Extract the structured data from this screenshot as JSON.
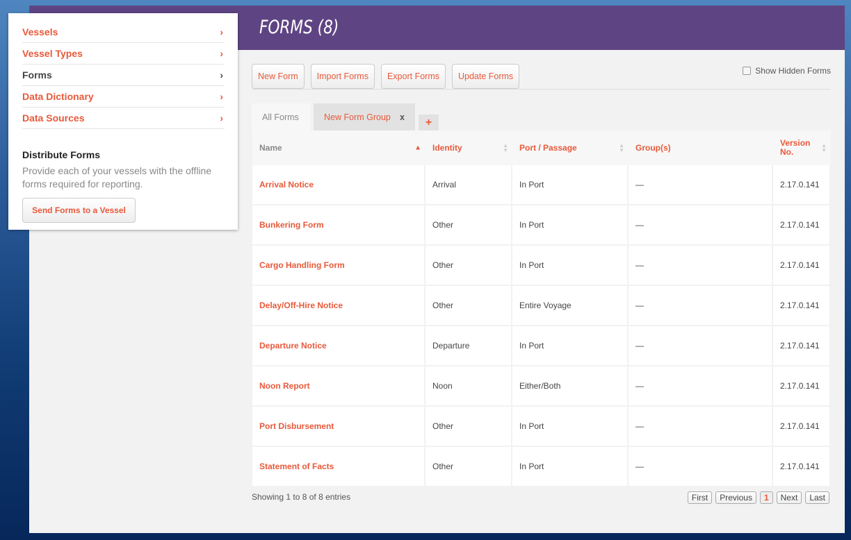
{
  "header": {
    "title": "FORMS (8)"
  },
  "sidebar": {
    "items": [
      {
        "label": "Vessels"
      },
      {
        "label": "Vessel Types"
      },
      {
        "label": "Forms",
        "active": true
      },
      {
        "label": "Data Dictionary"
      },
      {
        "label": "Data Sources"
      }
    ],
    "distribute_title": "Distribute Forms",
    "distribute_desc": "Provide each of your vessels with the offline forms required for reporting.",
    "send_button": "Send Forms to a Vessel"
  },
  "toolbar": {
    "new_form": "New Form",
    "import_forms": "Import Forms",
    "export_forms": "Export Forms",
    "update_forms": "Update Forms",
    "show_hidden": "Show Hidden Forms",
    "show_hidden_checked": false
  },
  "tabs": {
    "all": "All Forms",
    "group": "New Form Group",
    "close": "x",
    "add": "+"
  },
  "table": {
    "columns": [
      "Name",
      "Identity",
      "Port / Passage",
      "Group(s)",
      "Version No."
    ],
    "rows": [
      [
        "Arrival Notice",
        "Arrival",
        "In Port",
        "—",
        "2.17.0.141"
      ],
      [
        "Bunkering Form",
        "Other",
        "In Port",
        "—",
        "2.17.0.141"
      ],
      [
        "Cargo Handling Form",
        "Other",
        "In Port",
        "—",
        "2.17.0.141"
      ],
      [
        "Delay/Off-Hire Notice",
        "Other",
        "Entire Voyage",
        "—",
        "2.17.0.141"
      ],
      [
        "Departure Notice",
        "Departure",
        "In Port",
        "—",
        "2.17.0.141"
      ],
      [
        "Noon Report",
        "Noon",
        "Either/Both",
        "—",
        "2.17.0.141"
      ],
      [
        "Port Disbursement",
        "Other",
        "In Port",
        "—",
        "2.17.0.141"
      ],
      [
        "Statement of Facts",
        "Other",
        "In Port",
        "—",
        "2.17.0.141"
      ]
    ]
  },
  "footer": {
    "info": "Showing 1 to 8 of 8 entries",
    "first": "First",
    "previous": "Previous",
    "page": "1",
    "next": "Next",
    "last": "Last"
  },
  "colors": {
    "accent": "#e8593a",
    "header": "#5f4483"
  }
}
